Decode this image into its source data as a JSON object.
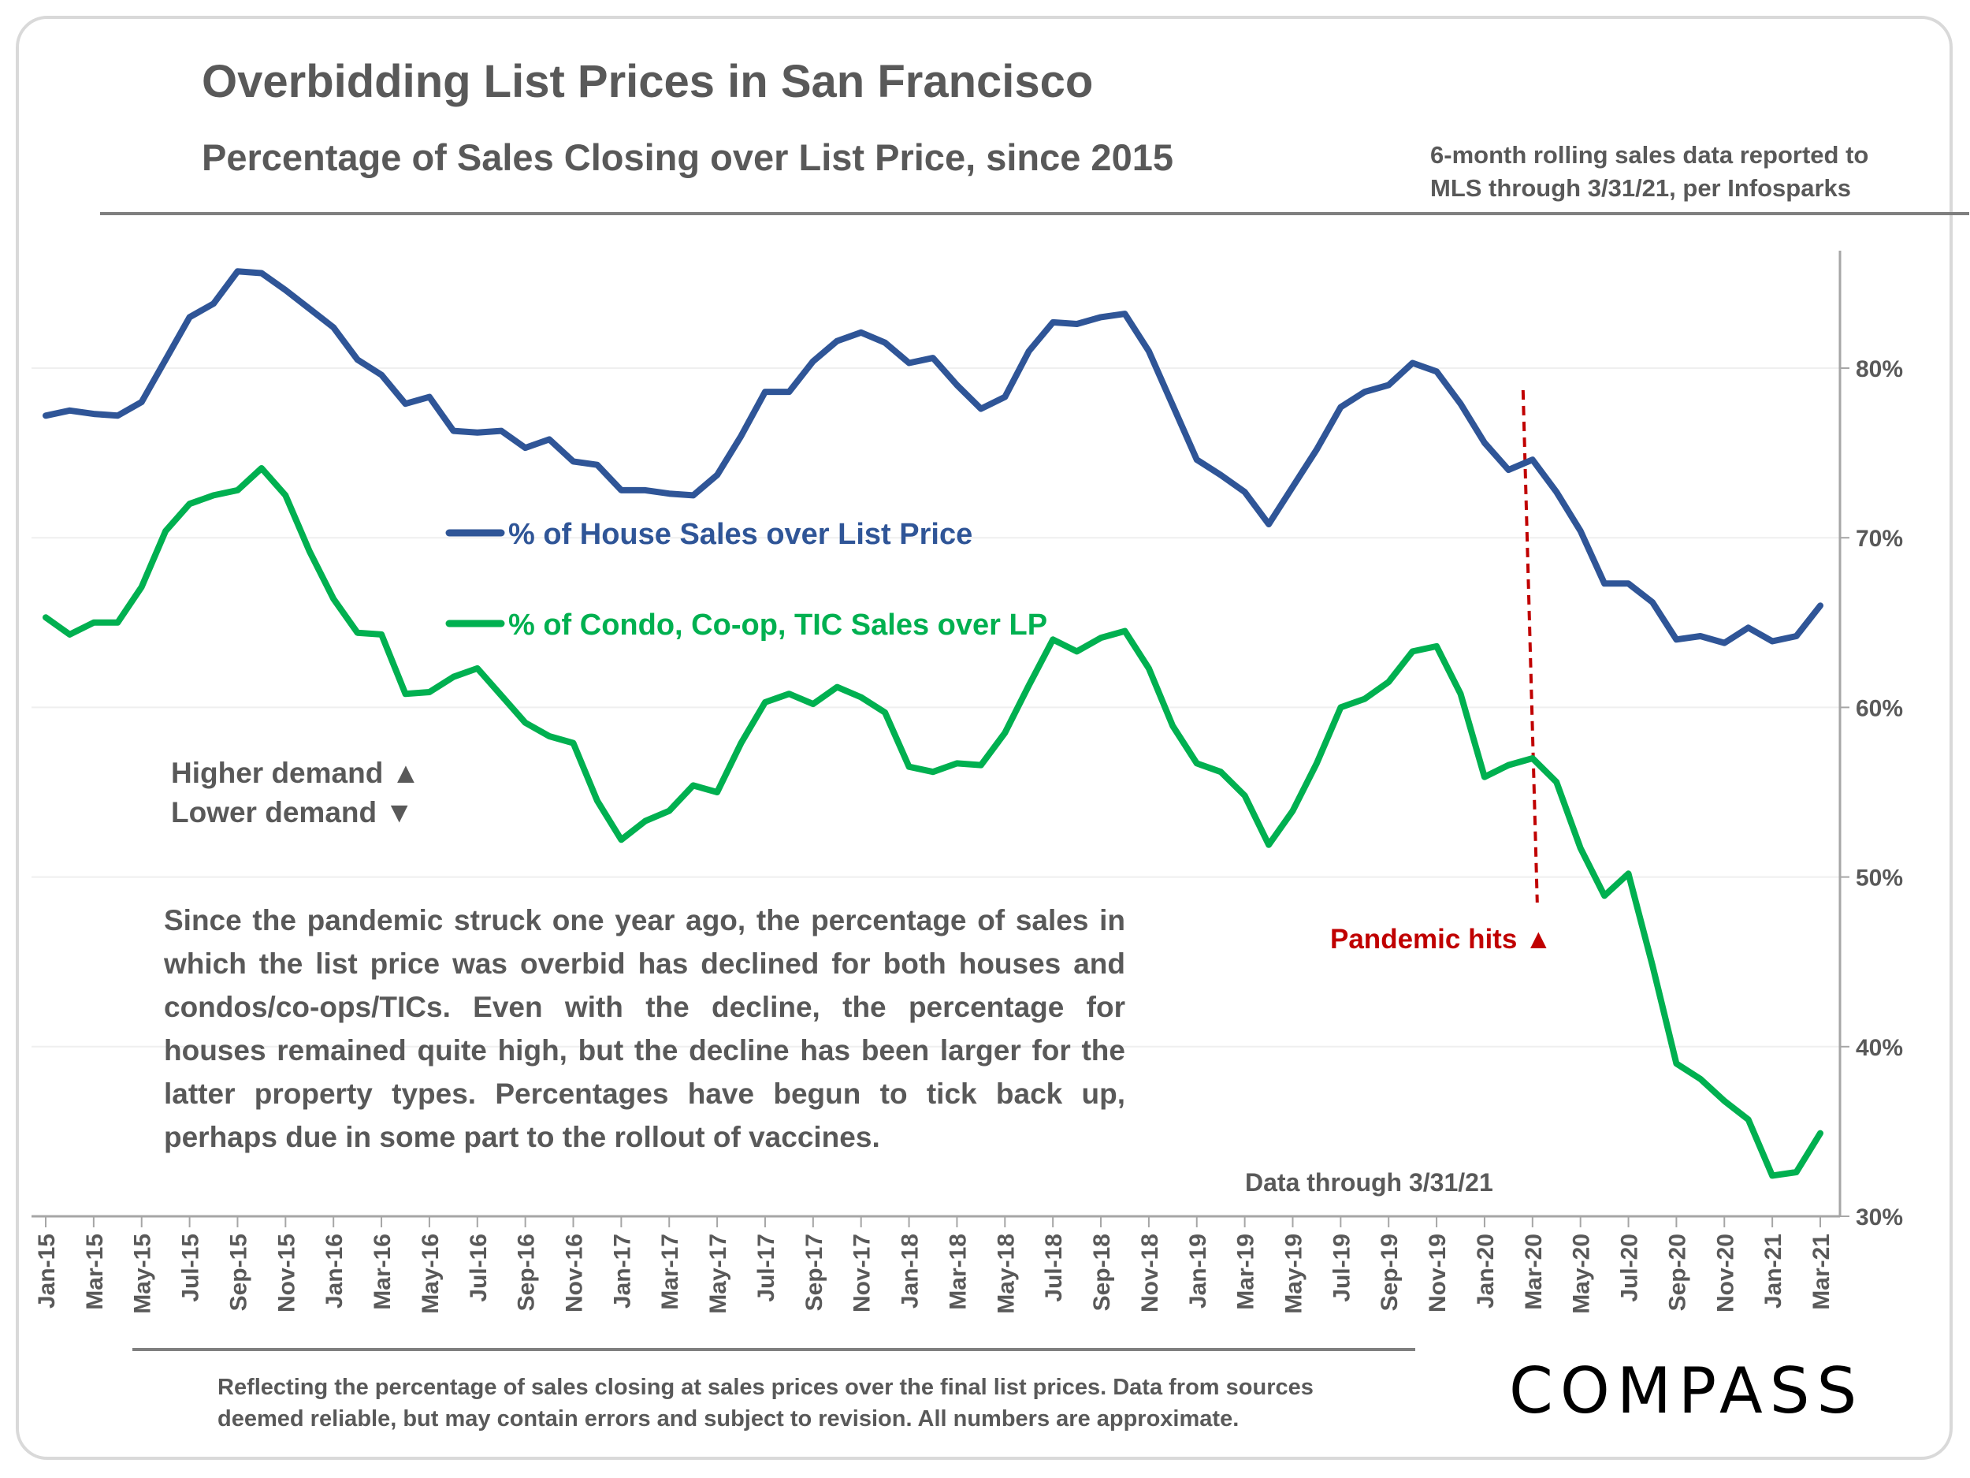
{
  "header": {
    "title": "Overbidding List Prices in San Francisco",
    "subtitle": "Percentage of Sales Closing over List Price, since 2015",
    "source_note": "6-month rolling sales data reported to MLS through 3/31/21, per Infosparks"
  },
  "annotations": {
    "higher_demand": "Higher demand ▲",
    "lower_demand": "Lower demand ▼",
    "pandemic": "Pandemic hits ▲",
    "data_through": "Data through 3/31/21",
    "commentary": "Since the pandemic struck one year ago, the percentage of sales in which the list price was overbid has declined for both houses and condos/co-ops/TICs. Even with the decline, the percentage for houses remained quite high, but the decline has been larger for the latter property types.  Percentages have begun to tick back up, perhaps due in some part to the rollout of vaccines."
  },
  "footer": {
    "note": "Reflecting the percentage of sales closing at sales prices over the final list prices. Data from sources deemed reliable, but may contain errors and subject to revision. All numbers are approximate.",
    "logo": "COMPASS"
  },
  "colors": {
    "house": "#2f5597",
    "condo": "#00b050",
    "pandemic": "#c00000",
    "text": "#595959"
  },
  "chart_data": {
    "type": "line",
    "title": "Overbidding List Prices in San Francisco",
    "xlabel": "",
    "ylabel": "",
    "ylim": [
      30,
      85
    ],
    "yticks": [
      "30%",
      "40%",
      "50%",
      "60%",
      "70%",
      "80%"
    ],
    "ytick_values": [
      30,
      40,
      50,
      60,
      70,
      80
    ],
    "grid": true,
    "legend_position": "center-left",
    "x": [
      "Jan-15",
      "Feb-15",
      "Mar-15",
      "Apr-15",
      "May-15",
      "Jun-15",
      "Jul-15",
      "Aug-15",
      "Sep-15",
      "Oct-15",
      "Nov-15",
      "Dec-15",
      "Jan-16",
      "Feb-16",
      "Mar-16",
      "Apr-16",
      "May-16",
      "Jun-16",
      "Jul-16",
      "Aug-16",
      "Sep-16",
      "Oct-16",
      "Nov-16",
      "Dec-16",
      "Jan-17",
      "Feb-17",
      "Mar-17",
      "Apr-17",
      "May-17",
      "Jun-17",
      "Jul-17",
      "Aug-17",
      "Sep-17",
      "Oct-17",
      "Nov-17",
      "Dec-17",
      "Jan-18",
      "Feb-18",
      "Mar-18",
      "Apr-18",
      "May-18",
      "Jun-18",
      "Jul-18",
      "Aug-18",
      "Sep-18",
      "Oct-18",
      "Nov-18",
      "Dec-18",
      "Jan-19",
      "Feb-19",
      "Mar-19",
      "Apr-19",
      "May-19",
      "Jun-19",
      "Jul-19",
      "Aug-19",
      "Sep-19",
      "Oct-19",
      "Nov-19",
      "Dec-19",
      "Jan-20",
      "Feb-20",
      "Mar-20",
      "Apr-20",
      "May-20",
      "Jun-20",
      "Jul-20",
      "Aug-20",
      "Sep-20",
      "Oct-20",
      "Nov-20",
      "Dec-20",
      "Jan-21",
      "Feb-21",
      "Mar-21"
    ],
    "x_tick_labels": [
      "Jan-15",
      "Mar-15",
      "May-15",
      "Jul-15",
      "Sep-15",
      "Nov-15",
      "Jan-16",
      "Mar-16",
      "May-16",
      "Jul-16",
      "Sep-16",
      "Nov-16",
      "Jan-17",
      "Mar-17",
      "May-17",
      "Jul-17",
      "Sep-17",
      "Nov-17",
      "Jan-18",
      "Mar-18",
      "May-18",
      "Jul-18",
      "Sep-18",
      "Nov-18",
      "Jan-19",
      "Mar-19",
      "May-19",
      "Jul-19",
      "Sep-19",
      "Nov-19",
      "Jan-20",
      "Mar-20",
      "May-20",
      "Jul-20",
      "Sep-20",
      "Nov-20",
      "Jan-21",
      "Mar-21"
    ],
    "pandemic_marker": "Mar-20",
    "series": [
      {
        "name": "% of House Sales over List Price",
        "key": "house",
        "values": [
          77.2,
          77.5,
          77.3,
          77.2,
          78.0,
          80.5,
          83.0,
          83.8,
          85.7,
          85.6,
          84.6,
          83.5,
          82.4,
          80.5,
          79.6,
          77.9,
          78.3,
          76.3,
          76.2,
          76.3,
          75.3,
          75.8,
          74.5,
          74.3,
          72.8,
          72.8,
          72.6,
          72.5,
          73.7,
          76.0,
          78.6,
          78.6,
          80.4,
          81.6,
          82.1,
          81.5,
          80.3,
          80.6,
          79.0,
          77.6,
          78.3,
          81.0,
          82.7,
          82.6,
          83.0,
          83.2,
          81.0,
          77.8,
          74.6,
          73.7,
          72.7,
          70.8,
          73.0,
          75.2,
          77.7,
          78.6,
          79.0,
          80.3,
          79.8,
          77.9,
          75.6,
          74.0,
          74.6,
          72.7,
          70.4,
          67.3,
          67.3,
          66.2,
          64.0,
          64.2,
          63.8,
          64.7,
          63.9,
          64.2,
          66.0
        ]
      },
      {
        "name": "% of Condo, Co-op, TIC Sales over LP",
        "key": "condo",
        "values": [
          65.3,
          64.3,
          65.0,
          65.0,
          67.1,
          70.4,
          72.0,
          72.5,
          72.8,
          74.1,
          72.5,
          69.2,
          66.4,
          64.4,
          64.3,
          60.8,
          60.9,
          61.8,
          62.3,
          60.7,
          59.1,
          58.3,
          57.9,
          54.5,
          52.2,
          53.3,
          53.9,
          55.4,
          55.0,
          57.9,
          60.3,
          60.8,
          60.2,
          61.2,
          60.6,
          59.7,
          56.5,
          56.2,
          56.7,
          56.6,
          58.5,
          61.3,
          64.0,
          63.3,
          64.1,
          64.5,
          62.3,
          58.9,
          56.7,
          56.2,
          54.8,
          51.9,
          53.9,
          56.7,
          60.0,
          60.5,
          61.5,
          63.3,
          63.6,
          60.8,
          55.9,
          56.6,
          57.0,
          55.6,
          51.7,
          48.9,
          50.2,
          44.8,
          39.0,
          38.1,
          36.8,
          35.7,
          32.4,
          32.6,
          34.9
        ]
      }
    ]
  }
}
